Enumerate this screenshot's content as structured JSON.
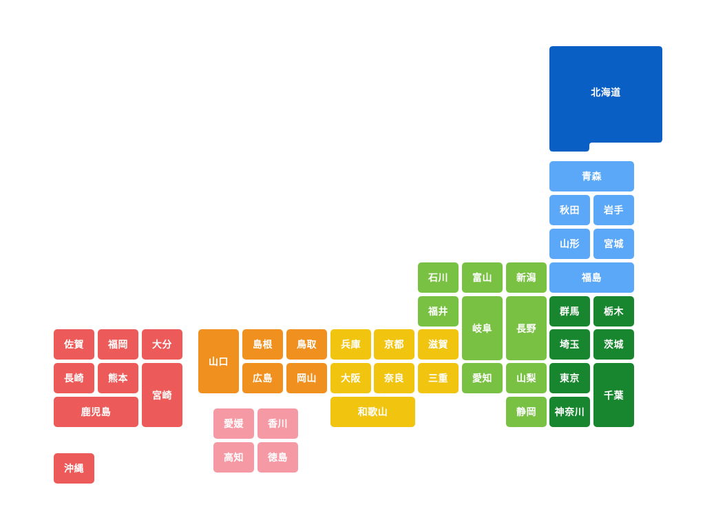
{
  "regions": {
    "hokkaido": {
      "color": "#0a5fc4"
    },
    "tohoku": {
      "color": "#5aa8f7"
    },
    "kanto": {
      "color": "#17862e"
    },
    "chubu": {
      "color": "#79c142"
    },
    "kinki": {
      "color": "#f1c40f"
    },
    "chugoku": {
      "color": "#f0901e"
    },
    "shikoku": {
      "color": "#f59aa4"
    },
    "kyushu": {
      "color": "#ec5b5a"
    }
  },
  "prefectures": {
    "hokkaido": {
      "label": "北海道",
      "region": "hokkaido"
    },
    "aomori": {
      "label": "青森",
      "region": "tohoku"
    },
    "akita": {
      "label": "秋田",
      "region": "tohoku"
    },
    "iwate": {
      "label": "岩手",
      "region": "tohoku"
    },
    "yamagata": {
      "label": "山形",
      "region": "tohoku"
    },
    "miyagi": {
      "label": "宮城",
      "region": "tohoku"
    },
    "fukushima": {
      "label": "福島",
      "region": "tohoku"
    },
    "ishikawa": {
      "label": "石川",
      "region": "chubu"
    },
    "toyama": {
      "label": "富山",
      "region": "chubu"
    },
    "niigata": {
      "label": "新潟",
      "region": "chubu"
    },
    "fukui": {
      "label": "福井",
      "region": "chubu"
    },
    "gifu": {
      "label": "岐阜",
      "region": "chubu"
    },
    "nagano": {
      "label": "長野",
      "region": "chubu"
    },
    "aichi": {
      "label": "愛知",
      "region": "chubu"
    },
    "yamanashi": {
      "label": "山梨",
      "region": "chubu"
    },
    "shizuoka": {
      "label": "静岡",
      "region": "chubu"
    },
    "gunma": {
      "label": "群馬",
      "region": "kanto"
    },
    "tochigi": {
      "label": "栃木",
      "region": "kanto"
    },
    "saitama": {
      "label": "埼玉",
      "region": "kanto"
    },
    "ibaraki": {
      "label": "茨城",
      "region": "kanto"
    },
    "tokyo": {
      "label": "東京",
      "region": "kanto"
    },
    "chiba": {
      "label": "千葉",
      "region": "kanto"
    },
    "kanagawa": {
      "label": "神奈川",
      "region": "kanto"
    },
    "hyogo": {
      "label": "兵庫",
      "region": "kinki"
    },
    "kyoto": {
      "label": "京都",
      "region": "kinki"
    },
    "shiga": {
      "label": "滋賀",
      "region": "kinki"
    },
    "osaka": {
      "label": "大阪",
      "region": "kinki"
    },
    "nara": {
      "label": "奈良",
      "region": "kinki"
    },
    "mie": {
      "label": "三重",
      "region": "kinki"
    },
    "wakayama": {
      "label": "和歌山",
      "region": "kinki"
    },
    "yamaguchi": {
      "label": "山口",
      "region": "chugoku"
    },
    "shimane": {
      "label": "島根",
      "region": "chugoku"
    },
    "tottori": {
      "label": "鳥取",
      "region": "chugoku"
    },
    "hiroshima": {
      "label": "広島",
      "region": "chugoku"
    },
    "okayama": {
      "label": "岡山",
      "region": "chugoku"
    },
    "ehime": {
      "label": "愛媛",
      "region": "shikoku"
    },
    "kagawa": {
      "label": "香川",
      "region": "shikoku"
    },
    "kochi": {
      "label": "高知",
      "region": "shikoku"
    },
    "tokushima": {
      "label": "徳島",
      "region": "shikoku"
    },
    "saga": {
      "label": "佐賀",
      "region": "kyushu"
    },
    "fukuoka": {
      "label": "福岡",
      "region": "kyushu"
    },
    "oita": {
      "label": "大分",
      "region": "kyushu"
    },
    "nagasaki": {
      "label": "長崎",
      "region": "kyushu"
    },
    "kumamoto": {
      "label": "熊本",
      "region": "kyushu"
    },
    "miyazaki": {
      "label": "宮崎",
      "region": "kyushu"
    },
    "kagoshima": {
      "label": "鹿児島",
      "region": "kyushu"
    },
    "okinawa": {
      "label": "沖縄",
      "region": "kyushu"
    }
  }
}
